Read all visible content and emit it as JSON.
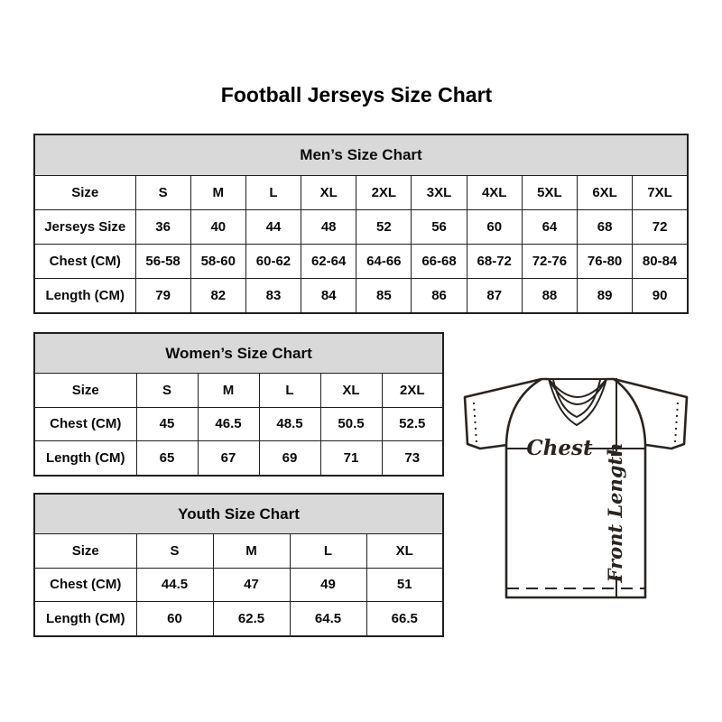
{
  "page_title": "Football Jerseys Size Chart",
  "chart_data": [
    {
      "type": "table",
      "title": "Men’s Size Chart",
      "rows": [
        [
          "Size",
          "S",
          "M",
          "L",
          "XL",
          "2XL",
          "3XL",
          "4XL",
          "5XL",
          "6XL",
          "7XL"
        ],
        [
          "Jerseys Size",
          "36",
          "40",
          "44",
          "48",
          "52",
          "56",
          "60",
          "64",
          "68",
          "72"
        ],
        [
          "Chest (CM)",
          "56-58",
          "58-60",
          "60-62",
          "62-64",
          "64-66",
          "66-68",
          "68-72",
          "72-76",
          "76-80",
          "80-84"
        ],
        [
          "Length (CM)",
          "79",
          "82",
          "83",
          "84",
          "85",
          "86",
          "87",
          "88",
          "89",
          "90"
        ]
      ]
    },
    {
      "type": "table",
      "title": "Women’s Size Chart",
      "rows": [
        [
          "Size",
          "S",
          "M",
          "L",
          "XL",
          "2XL"
        ],
        [
          "Chest (CM)",
          "45",
          "46.5",
          "48.5",
          "50.5",
          "52.5"
        ],
        [
          "Length (CM)",
          "65",
          "67",
          "69",
          "71",
          "73"
        ]
      ]
    },
    {
      "type": "table",
      "title": "Youth Size Chart",
      "rows": [
        [
          "Size",
          "S",
          "M",
          "L",
          "XL"
        ],
        [
          "Chest (CM)",
          "44.5",
          "47",
          "49",
          "51"
        ],
        [
          "Length (CM)",
          "60",
          "62.5",
          "64.5",
          "66.5"
        ]
      ]
    }
  ],
  "diagram": {
    "chest_label": "Chest",
    "front_length_label": "Front Length"
  },
  "colors": {
    "table_header_bg": "#d9d9d9",
    "table_border": "#1f1f1f",
    "text": "#000000",
    "diagram_line": "#2a2420"
  }
}
